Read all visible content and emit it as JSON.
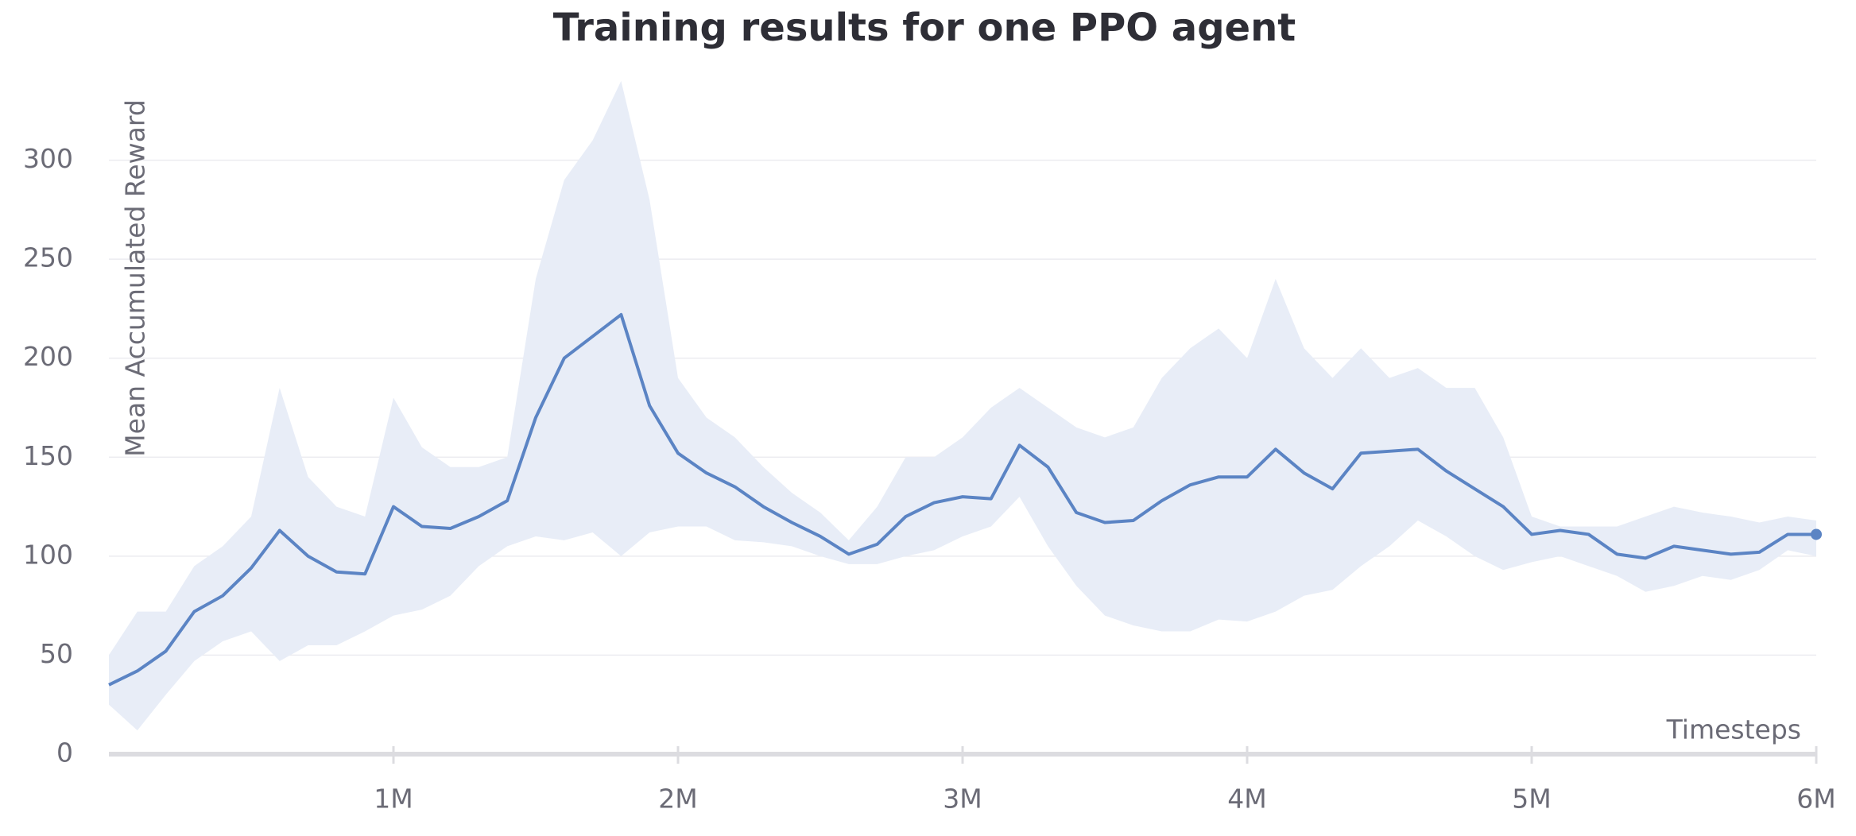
{
  "chart_data": {
    "type": "line",
    "title": "Training results for one PPO agent",
    "y_label": "Mean Accumulated Reward",
    "x_label": "Timesteps",
    "color": "#5b84c4",
    "band_color": "#e8edf7",
    "x": [
      0,
      100000,
      200000,
      300000,
      400000,
      500000,
      600000,
      700000,
      800000,
      900000,
      1000000,
      1100000,
      1200000,
      1300000,
      1400000,
      1500000,
      1600000,
      1700000,
      1800000,
      1900000,
      2000000,
      2100000,
      2200000,
      2300000,
      2400000,
      2500000,
      2600000,
      2700000,
      2800000,
      2900000,
      3000000,
      3100000,
      3200000,
      3300000,
      3400000,
      3500000,
      3600000,
      3700000,
      3800000,
      3900000,
      4000000,
      4100000,
      4200000,
      4300000,
      4400000,
      4500000,
      4600000,
      4700000,
      4800000,
      4900000,
      5000000,
      5100000,
      5200000,
      5300000,
      5400000,
      5500000,
      5600000,
      5700000,
      5800000,
      5900000,
      6000000
    ],
    "values": [
      35,
      42,
      52,
      72,
      80,
      94,
      113,
      100,
      92,
      91,
      125,
      115,
      114,
      120,
      128,
      170,
      200,
      211,
      222,
      176,
      152,
      142,
      135,
      125,
      117,
      110,
      101,
      106,
      120,
      127,
      130,
      129,
      156,
      145,
      122,
      117,
      118,
      128,
      136,
      140,
      140,
      154,
      142,
      134,
      152,
      153,
      154,
      143,
      134,
      125,
      111,
      113,
      111,
      101,
      99,
      105,
      103,
      101,
      102,
      111,
      111
    ],
    "band_upper": [
      50,
      72,
      72,
      95,
      105,
      120,
      185,
      140,
      125,
      120,
      180,
      155,
      145,
      145,
      150,
      240,
      290,
      310,
      340,
      280,
      190,
      170,
      160,
      145,
      132,
      122,
      108,
      125,
      150,
      150,
      160,
      175,
      185,
      175,
      165,
      160,
      165,
      190,
      205,
      215,
      200,
      240,
      205,
      190,
      205,
      190,
      195,
      185,
      185,
      160,
      120,
      115,
      115,
      115,
      120,
      125,
      122,
      120,
      117,
      120,
      118
    ],
    "band_lower": [
      25,
      12,
      30,
      47,
      57,
      62,
      47,
      55,
      55,
      62,
      70,
      73,
      80,
      95,
      105,
      110,
      108,
      112,
      100,
      112,
      115,
      115,
      108,
      107,
      105,
      100,
      96,
      96,
      100,
      103,
      110,
      115,
      130,
      105,
      85,
      70,
      65,
      62,
      62,
      68,
      67,
      72,
      80,
      83,
      95,
      105,
      118,
      110,
      100,
      93,
      97,
      100,
      95,
      90,
      82,
      85,
      90,
      88,
      93,
      103,
      100
    ],
    "xlim": [
      0,
      6000000
    ],
    "xticks": [
      {
        "value": 1000000,
        "label": "1M"
      },
      {
        "value": 2000000,
        "label": "2M"
      },
      {
        "value": 3000000,
        "label": "3M"
      },
      {
        "value": 4000000,
        "label": "4M"
      },
      {
        "value": 5000000,
        "label": "5M"
      },
      {
        "value": 6000000,
        "label": "6M"
      }
    ],
    "ylim": [
      0,
      350
    ],
    "yticks": [
      0,
      50,
      100,
      150,
      200,
      250,
      300
    ],
    "grid": true
  }
}
